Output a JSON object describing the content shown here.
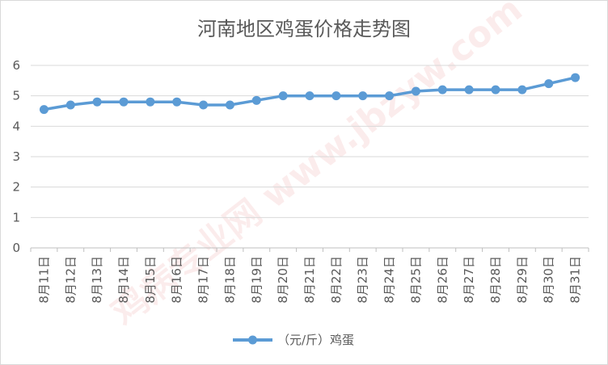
{
  "chart_data": {
    "type": "line",
    "title": "河南地区鸡蛋价格走势图",
    "xlabel": "",
    "ylabel": "",
    "categories": [
      "8月11日",
      "8月12日",
      "8月13日",
      "8月14日",
      "8月15日",
      "8月16日",
      "8月17日",
      "8月18日",
      "8月19日",
      "8月20日",
      "8月21日",
      "8月22日",
      "8月23日",
      "8月24日",
      "8月25日",
      "8月26日",
      "8月27日",
      "8月28日",
      "8月29日",
      "8月30日",
      "8月31日"
    ],
    "series": [
      {
        "name": "（元/斤）鸡蛋",
        "values": [
          4.55,
          4.7,
          4.8,
          4.8,
          4.8,
          4.8,
          4.7,
          4.7,
          4.85,
          5.0,
          5.0,
          5.0,
          5.0,
          5.0,
          5.15,
          5.2,
          5.2,
          5.2,
          5.2,
          5.4,
          5.6
        ],
        "color": "#5b9bd5"
      }
    ],
    "ylim": [
      0,
      6
    ],
    "yticks": [
      0,
      1,
      2,
      3,
      4,
      5,
      6
    ],
    "grid": true,
    "legend_position": "bottom",
    "gridline_color": "#d9d9d9",
    "axis_color": "#bfbfbf",
    "text_color": "#595959"
  },
  "watermark": {
    "text": "鸡病专业网 www.jbzyw.com",
    "color": "#e05050"
  }
}
